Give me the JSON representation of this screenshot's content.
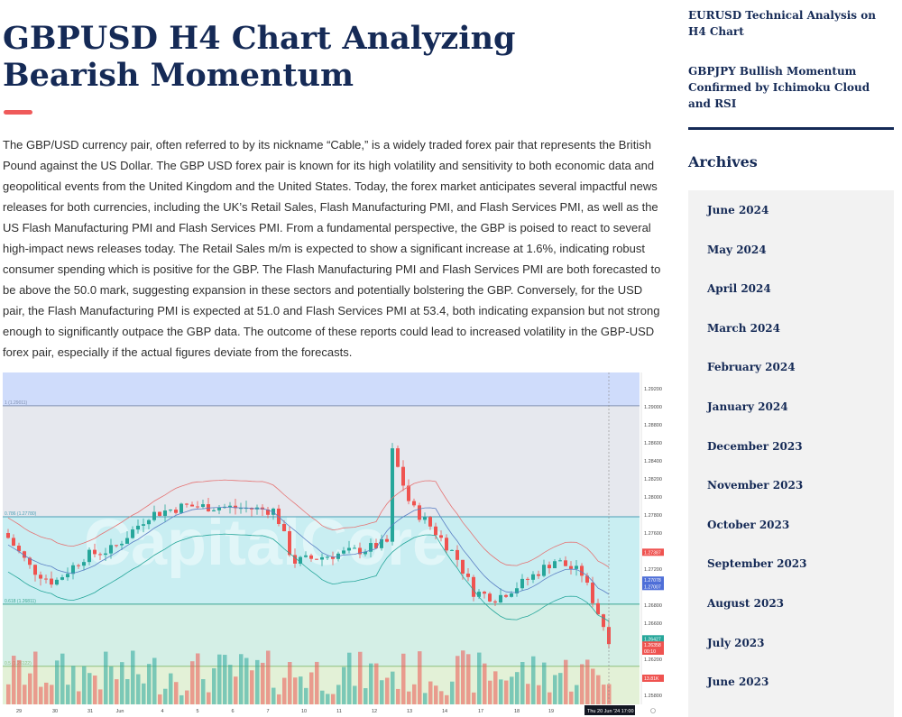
{
  "article": {
    "title": "GBPUSD H4 Chart Analyzing Bearish Momentum",
    "body": "The GBP/USD currency pair, often referred to by its nickname “Cable,” is a widely traded forex pair that represents the British Pound against the US Dollar. The GBP USD forex pair is known for its high volatility and sensitivity to both economic data and geopolitical events from the United Kingdom and the United States. Today, the forex market anticipates several impactful news releases for both currencies, including the UK’s Retail Sales, Flash Manufacturing PMI, and Flash Services PMI, as well as the US Flash Manufacturing PMI and Flash Services PMI. From a fundamental perspective, the GBP is poised to react to several high-impact news releases today. The Retail Sales m/m is expected to show a significant increase at 1.6%, indicating robust consumer spending which is positive for the GBP. The Flash Manufacturing PMI and Flash Services PMI are both forecasted to be above the 50.0 mark, suggesting expansion in these sectors and potentially bolstering the GBP. Conversely, for the USD pair, the Flash Manufacturing PMI is expected at 51.0 and Flash Services PMI at 53.4, both indicating expansion but not strong enough to significantly outpace the GBP data. The outcome of these reports could lead to increased volatility in the GBP-USD forex pair, especially if the actual figures deviate from the forecasts."
  },
  "sidebar": {
    "related": [
      "EURUSD Technical Analysis on H4 Chart",
      "GBPJPY Bullish Momentum Confirmed by Ichimoku Cloud and RSI"
    ],
    "archives_title": "Archives",
    "archives": [
      "June 2024",
      "May 2024",
      "April 2024",
      "March 2024",
      "February 2024",
      "January 2024",
      "December 2023",
      "November 2023",
      "October 2023",
      "September 2023",
      "August 2023",
      "July 2023",
      "June 2023"
    ]
  },
  "chart": {
    "watermark": "CapitalCore",
    "colors": {
      "bull": "#26a69a",
      "bear": "#ef5350",
      "band": "#e57373",
      "ma": "#5b7fc4"
    },
    "y_ticks": [
      "1.29200",
      "1.29000",
      "1.28800",
      "1.28600",
      "1.28400",
      "1.28200",
      "1.28000",
      "1.27800",
      "1.27600",
      "1.27400",
      "1.27200",
      "1.27000",
      "1.26800",
      "1.26600",
      "1.26400",
      "1.26200",
      "1.26000",
      "1.25800"
    ],
    "x_ticks": [
      "29",
      "30",
      "31",
      "Jun",
      "4",
      "5",
      "6",
      "7",
      "10",
      "11",
      "12",
      "13",
      "14",
      "17",
      "18",
      "19"
    ],
    "fib_levels": [
      {
        "label": "1 (1.29011)",
        "price": 1.29011,
        "color": "#7f8fb0"
      },
      {
        "label": "0.786 (1.27780)",
        "price": 1.2778,
        "color": "#4a9fb5"
      },
      {
        "label": "0.618 (1.26811)",
        "price": 1.26811,
        "color": "#3aa58f"
      },
      {
        "label": "0.5 (1.26122)",
        "price": 1.26122,
        "color": "#8fbf7f"
      }
    ],
    "price_tags": [
      {
        "text": "1.27387",
        "price": 1.27387,
        "color": "#ef5350"
      },
      {
        "text": "1.27078",
        "price": 1.27078,
        "color": "#4f6fd8"
      },
      {
        "text": "1.27007",
        "price": 1.27007,
        "color": "#4f6fd8"
      },
      {
        "text": "1.26427",
        "price": 1.26427,
        "color": "#26a69a"
      },
      {
        "text": "1.26358",
        "price": 1.26358,
        "color": "#ef5350"
      },
      {
        "text": "00:10",
        "price": 1.2629,
        "color": "#ef5350"
      },
      {
        "text": "13.81K",
        "price": 1.2599,
        "color": "#ef5350"
      }
    ],
    "cursor_label": "Thu 20 Jun '24   17:00"
  }
}
